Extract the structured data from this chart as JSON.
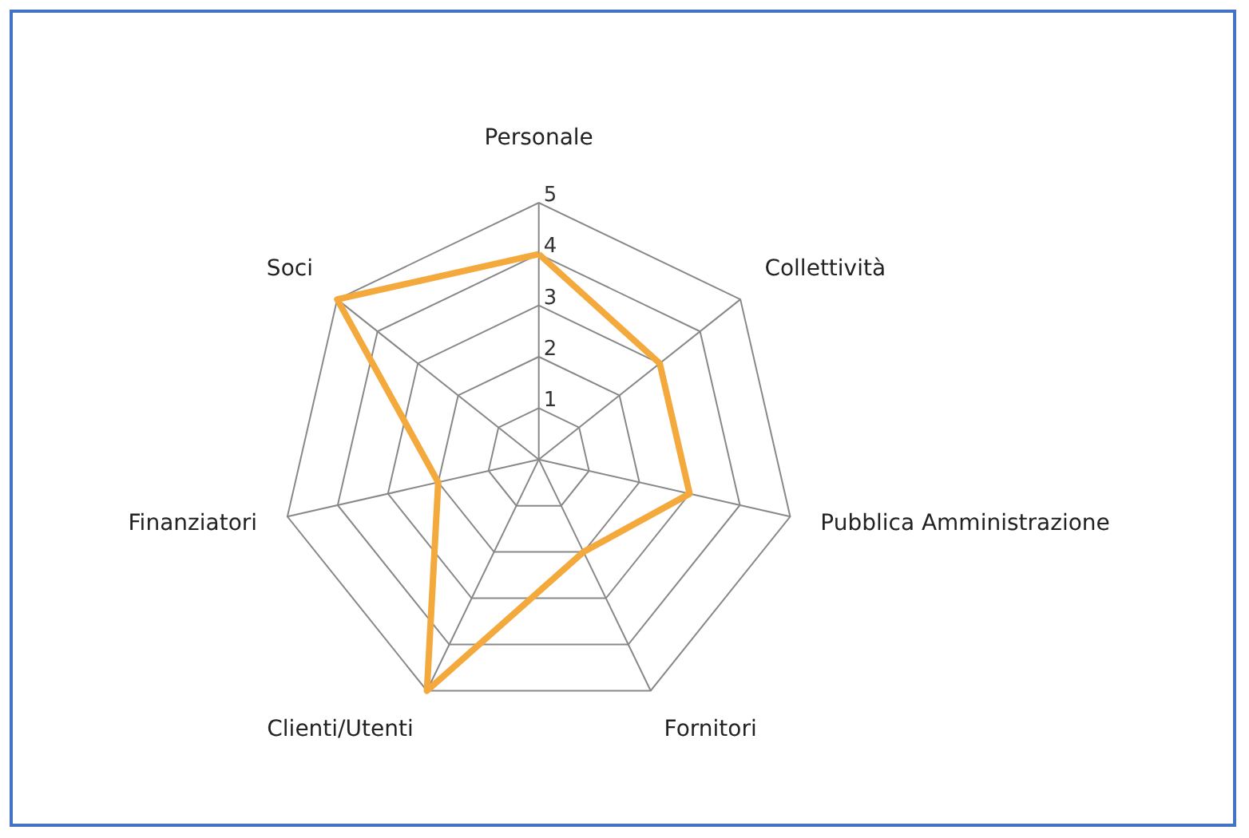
{
  "chart_data": {
    "type": "radar",
    "categories": [
      "Personale",
      "Collettività",
      "Pubblica Amministrazione",
      "Fornitori",
      "Clienti/Utenti",
      "Finanziatori",
      "Soci"
    ],
    "series": [
      {
        "color": "#f4a93c",
        "values": [
          4,
          3,
          3,
          2,
          5,
          2,
          5
        ]
      }
    ],
    "ylim": [
      0,
      5
    ],
    "yticks": [
      1,
      2,
      3,
      4,
      5
    ],
    "grid": true
  }
}
